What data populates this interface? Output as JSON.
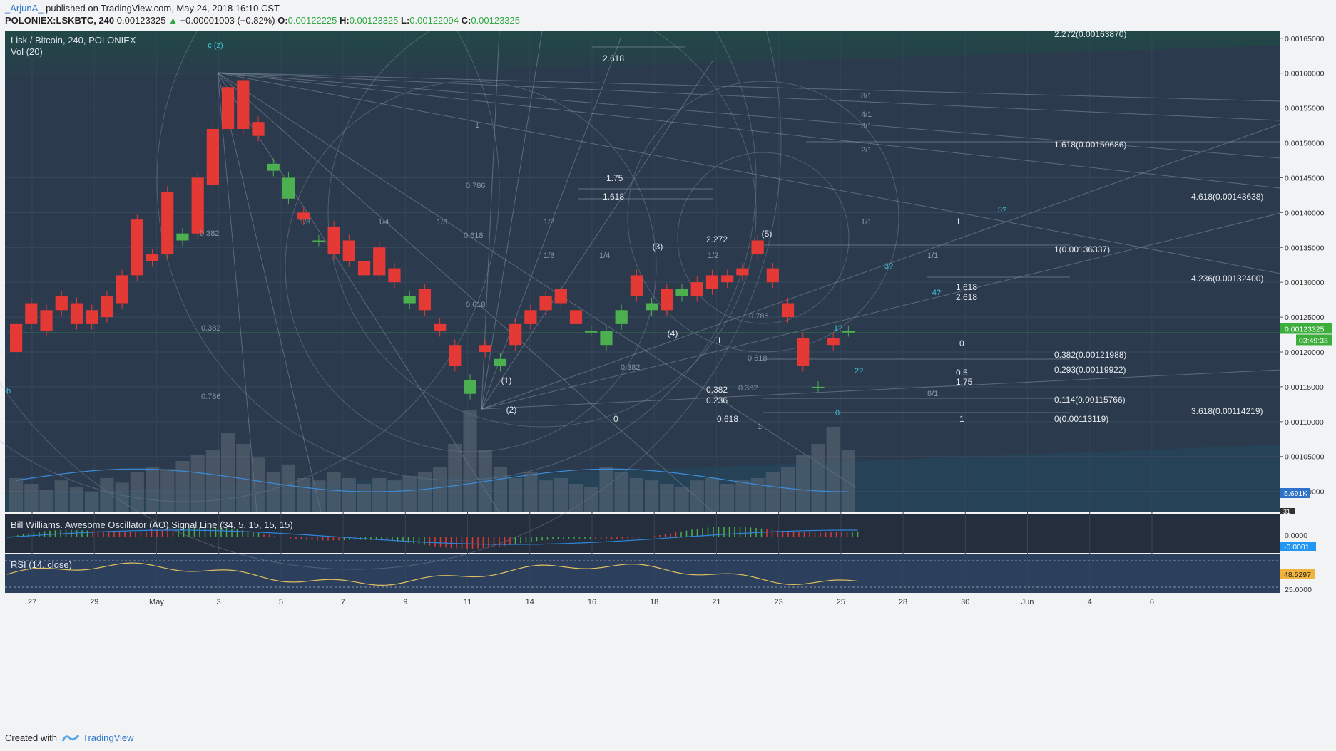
{
  "header": {
    "author": "_ArjunA_",
    "published": "published on TradingView.com, May 24, 2018 16:10 CST",
    "symbol": "POLONIEX:LSKBTC, 240",
    "last": "0.00123325",
    "arrow": "▲",
    "change": "+0.00001003 (+0.82%)",
    "o_label": "O:",
    "o": "0.00122225",
    "h_label": "H:",
    "h": "0.00123325",
    "l_label": "L:",
    "l": "0.00122094",
    "c_label": "C:",
    "c": "0.00123325"
  },
  "chart_title": "Lisk / Bitcoin, 240, POLONIEX",
  "vol_label": "Vol (20)",
  "ao_label": "Bill Williams. Awesome Oscillator (AO) Signal Line (34, 5, 15, 15, 15)",
  "rsi_label": "RSI (14, close)",
  "footer": {
    "created": "Created with",
    "brand": "TradingView"
  },
  "colors": {
    "panel": "#2b3a4d",
    "up": "#4caf50",
    "down": "#e53935",
    "grid": "#9aa6b5",
    "accent": "#2196f3",
    "rsi": "#e0c060"
  },
  "chart_data": {
    "type": "candlestick",
    "title": "Lisk / Bitcoin, 240, POLONIEX",
    "ylim": [
      0.00097,
      0.00166
    ],
    "price_ticks": [
      "0.00165000",
      "0.00160000",
      "0.00155000",
      "0.00150000",
      "0.00145000",
      "0.00140000",
      "0.00135000",
      "0.00130000",
      "0.00125000",
      "0.00120000",
      "0.00115000",
      "0.00110000",
      "0.00105000",
      "0.00100000"
    ],
    "x_ticks": [
      "27",
      "29",
      "May",
      "3",
      "5",
      "7",
      "9",
      "11",
      "14",
      "16",
      "18",
      "21",
      "23",
      "25",
      "28",
      "30",
      "Jun",
      "4",
      "6"
    ],
    "last_price": "0.00123325",
    "countdown": "03:49:33",
    "volume_badge": "5.691K",
    "volume_badge2": "31",
    "ao_ticks": [
      "0.0000"
    ],
    "ao_badge": "-0.0001",
    "rsi_ticks": [
      "25.0000"
    ],
    "rsi_badge": "48.5297",
    "path": [
      [
        0.00124,
        0.0012
      ],
      [
        0.00127,
        0.00124
      ],
      [
        0.00126,
        0.00123
      ],
      [
        0.00128,
        0.00126
      ],
      [
        0.00127,
        0.00124
      ],
      [
        0.00126,
        0.00124
      ],
      [
        0.00128,
        0.00125
      ],
      [
        0.00131,
        0.00127
      ],
      [
        0.00139,
        0.00131
      ],
      [
        0.00134,
        0.00133
      ],
      [
        0.00143,
        0.00134
      ],
      [
        0.00136,
        0.00137
      ],
      [
        0.00145,
        0.00137
      ],
      [
        0.00152,
        0.00144
      ],
      [
        0.00158,
        0.00152
      ],
      [
        0.00159,
        0.00152
      ],
      [
        0.00153,
        0.00151
      ],
      [
        0.00146,
        0.00147
      ],
      [
        0.00142,
        0.00145
      ],
      [
        0.0014,
        0.00139
      ],
      [
        0.00136,
        0.00136
      ],
      [
        0.00138,
        0.00134
      ],
      [
        0.00136,
        0.00133
      ],
      [
        0.00133,
        0.00131
      ],
      [
        0.00135,
        0.00131
      ],
      [
        0.00132,
        0.0013
      ],
      [
        0.00127,
        0.00128
      ],
      [
        0.00129,
        0.00126
      ],
      [
        0.00124,
        0.00123
      ],
      [
        0.00121,
        0.00118
      ],
      [
        0.00114,
        0.00116
      ],
      [
        0.00121,
        0.0012
      ],
      [
        0.00118,
        0.00119
      ],
      [
        0.00124,
        0.00121
      ],
      [
        0.00126,
        0.00124
      ],
      [
        0.00128,
        0.00126
      ],
      [
        0.00129,
        0.00127
      ],
      [
        0.00126,
        0.00124
      ],
      [
        0.00123,
        0.00123
      ],
      [
        0.00121,
        0.00123
      ],
      [
        0.00124,
        0.00126
      ],
      [
        0.00131,
        0.00128
      ],
      [
        0.00126,
        0.00127
      ],
      [
        0.00129,
        0.00126
      ],
      [
        0.00128,
        0.00129
      ],
      [
        0.0013,
        0.00128
      ],
      [
        0.00131,
        0.00129
      ],
      [
        0.00131,
        0.0013
      ],
      [
        0.00132,
        0.00131
      ],
      [
        0.00136,
        0.00134
      ],
      [
        0.00132,
        0.0013
      ],
      [
        0.00127,
        0.00125
      ],
      [
        0.00122,
        0.00118
      ],
      [
        0.00115,
        0.00115
      ],
      [
        0.00122,
        0.00121
      ],
      [
        0.00123,
        0.00123
      ]
    ],
    "volume": [
      0.3,
      0.25,
      0.2,
      0.28,
      0.22,
      0.18,
      0.3,
      0.26,
      0.35,
      0.4,
      0.38,
      0.45,
      0.5,
      0.55,
      0.7,
      0.6,
      0.48,
      0.35,
      0.42,
      0.3,
      0.28,
      0.35,
      0.3,
      0.25,
      0.3,
      0.28,
      0.32,
      0.35,
      0.4,
      0.6,
      0.9,
      0.55,
      0.4,
      0.3,
      0.35,
      0.28,
      0.3,
      0.25,
      0.22,
      0.4,
      0.35,
      0.3,
      0.28,
      0.25,
      0.22,
      0.28,
      0.3,
      0.25,
      0.28,
      0.3,
      0.35,
      0.4,
      0.5,
      0.6,
      0.75,
      0.55
    ],
    "wave_labels": [
      "(1)",
      "(2)",
      "(3)",
      "(4)",
      "(5)",
      "c (z)",
      "b",
      "1?",
      "2?",
      "3?",
      "4?",
      "5?",
      "0"
    ],
    "fib_labels": [
      "2.272(0.00163870)",
      "1.618(0.00150686)",
      "4.618(0.00143638)",
      "1(0.00136337)",
      "4.236(0.00132400)",
      "0.382(0.00121988)",
      "0.293(0.00119922)",
      "0.114(0.00115766)",
      "0(0.00113119)",
      "3.618(0.00114219)",
      "2.618",
      "1.75",
      "1.618",
      "2.272",
      "0.382",
      "0.236",
      "1",
      "0",
      "0.618",
      "0.5",
      "1.75",
      "1.618",
      "2.618",
      "1",
      "0",
      "1",
      "0.382",
      "0.618",
      "0.786",
      "0.382",
      "0.786",
      "0.618",
      "0.382",
      "0.618",
      "0.786",
      "1",
      "1/8",
      "1/4",
      "1/3",
      "1/2",
      "1/8",
      "1/4",
      "1/2",
      "1/1",
      "2/1",
      "3/1",
      "4/1",
      "8/1",
      "1/1",
      "8/1",
      "0.382",
      "1"
    ]
  }
}
